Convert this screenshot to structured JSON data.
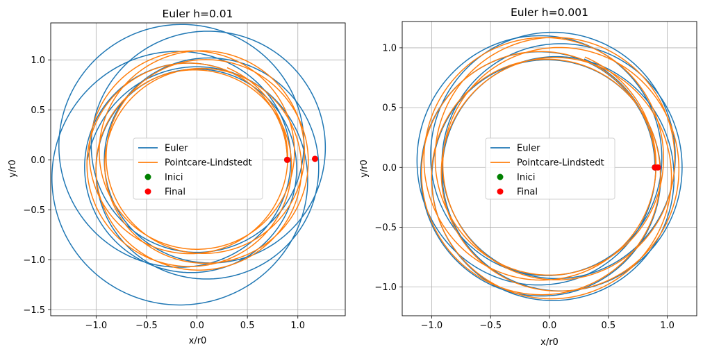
{
  "figure": {
    "background": "#ffffff",
    "colors": {
      "euler": "#1f77b4",
      "pl": "#ff7f0e",
      "inici": "#008000",
      "final": "#ff0000",
      "grid": "#b0b0b0"
    }
  },
  "chart_data": [
    {
      "type": "line",
      "title": "Euler h=0.01",
      "xlabel": "x/r0",
      "ylabel": "y/r0",
      "xlim": [
        -1.45,
        1.47
      ],
      "ylim": [
        -1.56,
        1.37
      ],
      "xticks": [
        -1.0,
        -0.5,
        0.0,
        0.5,
        1.0
      ],
      "xtick_labels": [
        "−1.0",
        "−0.5",
        "0.0",
        "0.5",
        "1.0"
      ],
      "yticks": [
        -1.5,
        -1.0,
        -0.5,
        0.0,
        0.5,
        1.0
      ],
      "ytick_labels": [
        "−1.5",
        "−1.0",
        "−0.5",
        "0.0",
        "0.5",
        "1.0"
      ],
      "grid": true,
      "legend": {
        "position": "center",
        "entries": [
          "Euler",
          "Pointcare-Lindstedt",
          "Inici",
          "Final"
        ]
      },
      "series": [
        {
          "name": "Euler",
          "kind": "line",
          "color": "#1f77b4",
          "a": 1.0,
          "e": 0.105,
          "precession_deg_per_orbit": 72,
          "orbits": 6.5,
          "growth_per_orbit": 0.04
        },
        {
          "name": "Pointcare-Lindstedt",
          "kind": "line",
          "color": "#ff7f0e",
          "a": 1.0,
          "e": 0.105,
          "precession_deg_per_orbit": 57,
          "orbits": 6.2,
          "growth_per_orbit": 0
        },
        {
          "name": "Inici",
          "kind": "scatter",
          "color": "#008000",
          "points": [
            [
              0.895,
              0.0
            ]
          ]
        },
        {
          "name": "Final",
          "kind": "scatter",
          "color": "#ff0000",
          "points": [
            [
              0.895,
              0.0
            ],
            [
              1.17,
              0.01
            ]
          ]
        }
      ]
    },
    {
      "type": "line",
      "title": "Euler h=0.001",
      "xlabel": "x/r0",
      "ylabel": "y/r0",
      "xlim": [
        -1.25,
        1.25
      ],
      "ylim": [
        -1.24,
        1.22
      ],
      "xticks": [
        -1.0,
        -0.5,
        0.0,
        0.5,
        1.0
      ],
      "xtick_labels": [
        "−1.0",
        "−0.5",
        "0.0",
        "0.5",
        "1.0"
      ],
      "yticks": [
        -1.0,
        -0.5,
        0.0,
        0.5,
        1.0
      ],
      "ytick_labels": [
        "−1.0",
        "−0.5",
        "0.0",
        "0.5",
        "1.0"
      ],
      "grid": true,
      "legend": {
        "position": "center",
        "entries": [
          "Euler",
          "Pointcare-Lindstedt",
          "Inici",
          "Final"
        ]
      },
      "series": [
        {
          "name": "Euler",
          "kind": "line",
          "color": "#1f77b4",
          "a": 1.0,
          "e": 0.105,
          "precession_deg_per_orbit": 60,
          "orbits": 6.2,
          "growth_per_orbit": 0.004
        },
        {
          "name": "Pointcare-Lindstedt",
          "kind": "line",
          "color": "#ff7f0e",
          "a": 1.0,
          "e": 0.1,
          "precession_deg_per_orbit": 57,
          "orbits": 6.2,
          "growth_per_orbit": 0
        },
        {
          "name": "Inici",
          "kind": "scatter",
          "color": "#008000",
          "points": [
            [
              0.895,
              0.0
            ]
          ]
        },
        {
          "name": "Final",
          "kind": "scatter",
          "color": "#ff0000",
          "points": [
            [
              0.895,
              0.0
            ],
            [
              0.92,
              0.0
            ]
          ]
        }
      ]
    }
  ]
}
